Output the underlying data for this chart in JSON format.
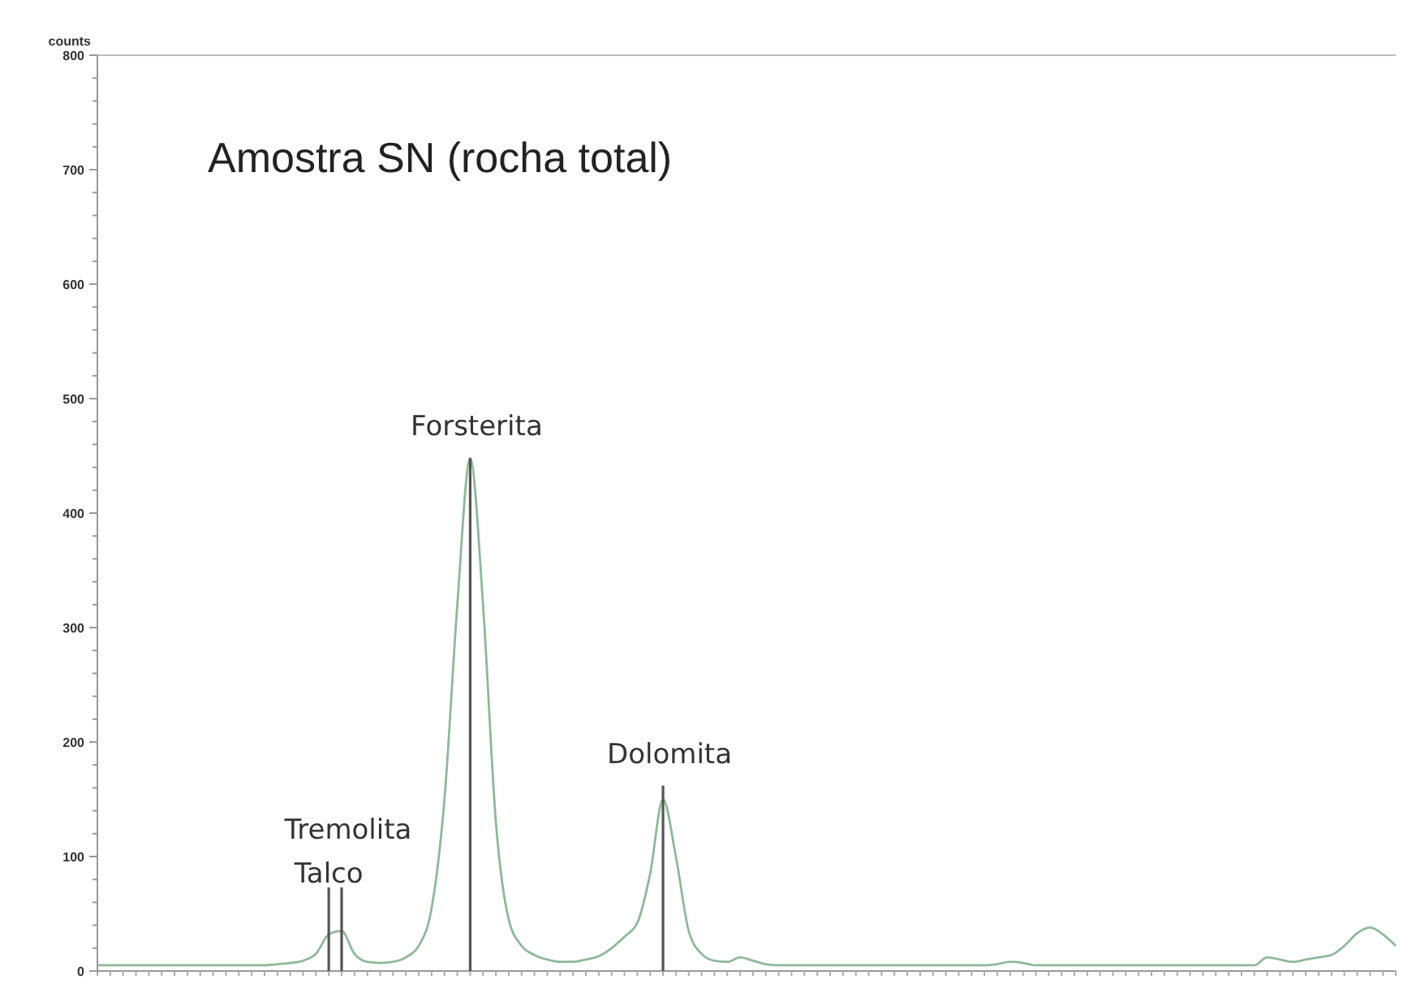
{
  "chart_data": {
    "type": "line",
    "title": "Amostra SN (rocha total)",
    "ylabel": "counts",
    "categories": [
      null,
      null,
      null,
      null,
      null,
      null,
      null,
      null,
      null,
      null,
      null,
      null,
      null,
      null,
      null,
      null,
      null,
      null,
      null,
      null,
      null,
      null,
      null,
      null,
      null,
      null,
      null,
      null,
      null,
      null,
      null,
      null,
      null,
      null,
      null,
      null,
      null,
      null,
      null,
      null,
      null,
      null,
      null,
      null,
      null,
      null,
      null,
      null,
      null,
      null,
      null,
      null,
      null,
      null,
      null,
      null,
      null,
      null,
      null,
      null,
      null,
      null,
      null,
      null,
      null,
      null,
      null,
      null,
      null,
      null,
      null,
      null,
      null,
      null,
      null,
      null,
      null,
      null,
      null,
      null,
      null,
      null,
      null,
      null,
      null,
      null,
      null,
      null,
      null,
      null,
      null,
      null,
      null,
      null,
      null,
      null,
      null,
      null,
      null,
      null,
      null,
      null
    ],
    "series": [
      {
        "color": "#8fb89a",
        "values": [
          5,
          5,
          5,
          5,
          5,
          5,
          5,
          5,
          5,
          5,
          5,
          5,
          5,
          5,
          6,
          7,
          9,
          15,
          32,
          35,
          15,
          8,
          7,
          8,
          12,
          22,
          55,
          150,
          320,
          448,
          320,
          130,
          45,
          22,
          14,
          10,
          8,
          8,
          10,
          13,
          20,
          30,
          42,
          85,
          150,
          100,
          35,
          15,
          9,
          8,
          12,
          9,
          6,
          5,
          5,
          5,
          5,
          5,
          5,
          5,
          5,
          5,
          5,
          5,
          5,
          5,
          5,
          5,
          5,
          5,
          6,
          8,
          7,
          5,
          5,
          5,
          5,
          5,
          5,
          5,
          5,
          5,
          5,
          5,
          5,
          5,
          5,
          5,
          5,
          5,
          5,
          12,
          10,
          8,
          10,
          12,
          14,
          22,
          33,
          38,
          32,
          22
        ]
      },
      {
        "type": "bar",
        "color": "#555555",
        "values": [
          null,
          null,
          null,
          null,
          null,
          null,
          null,
          null,
          null,
          null,
          null,
          null,
          null,
          null,
          null,
          null,
          null,
          null,
          73,
          73,
          null,
          null,
          null,
          null,
          null,
          null,
          null,
          null,
          null,
          448,
          null,
          null,
          null,
          null,
          null,
          null,
          null,
          null,
          null,
          null,
          null,
          null,
          null,
          null,
          162,
          null,
          null,
          null,
          null,
          null,
          null,
          null,
          null,
          null,
          null,
          null,
          null,
          null,
          null,
          null,
          null,
          null,
          null,
          null,
          null,
          null,
          null,
          null,
          null,
          null,
          null,
          null,
          null,
          null,
          null,
          null,
          null,
          null,
          null,
          null,
          null,
          null,
          null,
          null,
          null,
          null,
          null,
          null,
          null,
          null,
          null,
          null,
          null,
          null,
          null,
          null,
          null,
          null,
          null,
          null,
          null,
          null
        ],
        "value_labels": [
          null,
          null,
          null,
          null,
          null,
          null,
          null,
          null,
          null,
          null,
          null,
          null,
          null,
          null,
          null,
          null,
          null,
          null,
          "Talco",
          "Tremolita",
          null,
          null,
          null,
          null,
          null,
          null,
          null,
          null,
          null,
          "Forsterita",
          null,
          null,
          null,
          null,
          null,
          null,
          null,
          null,
          null,
          null,
          null,
          null,
          null,
          null,
          "Dolomita",
          null,
          null,
          null,
          null,
          null,
          null,
          null,
          null,
          null,
          null,
          null,
          null,
          null,
          null,
          null,
          null,
          null,
          null,
          null,
          null,
          null,
          null,
          null,
          null,
          null,
          null,
          null,
          null,
          null,
          null,
          null,
          null,
          null,
          null,
          null,
          null,
          null,
          null,
          null,
          null,
          null,
          null,
          null,
          null,
          null,
          null,
          null,
          null,
          null,
          null,
          null,
          null,
          null,
          null,
          null,
          null,
          null
        ]
      }
    ],
    "ylim": [
      0,
      800
    ],
    "yticks": [
      0,
      {
        "value": 20,
        "label": null
      },
      {
        "value": 40,
        "label": null
      },
      {
        "value": 60,
        "label": null
      },
      {
        "value": 80,
        "label": null
      },
      100,
      {
        "value": 120,
        "label": null
      },
      {
        "value": 140,
        "label": null
      },
      {
        "value": 160,
        "label": null
      },
      {
        "value": 180,
        "label": null
      },
      200,
      {
        "value": 220,
        "label": null
      },
      {
        "value": 240,
        "label": null
      },
      {
        "value": 260,
        "label": null
      },
      {
        "value": 280,
        "label": null
      },
      300,
      {
        "value": 320,
        "label": null
      },
      {
        "value": 340,
        "label": null
      },
      {
        "value": 360,
        "label": null
      },
      {
        "value": 380,
        "label": null
      },
      400,
      {
        "value": 420,
        "label": null
      },
      {
        "value": 440,
        "label": null
      },
      {
        "value": 460,
        "label": null
      },
      {
        "value": 480,
        "label": null
      },
      500,
      {
        "value": 520,
        "label": null
      },
      {
        "value": 540,
        "label": null
      },
      {
        "value": 560,
        "label": null
      },
      {
        "value": 580,
        "label": null
      },
      600,
      {
        "value": 620,
        "label": null
      },
      {
        "value": 640,
        "label": null
      },
      {
        "value": 660,
        "label": null
      },
      {
        "value": 680,
        "label": null
      },
      700,
      {
        "value": 720,
        "label": null
      },
      {
        "value": 740,
        "label": null
      },
      {
        "value": 760,
        "label": null
      },
      {
        "value": 780,
        "label": null
      },
      800
    ],
    "tick_labels": "y"
  }
}
